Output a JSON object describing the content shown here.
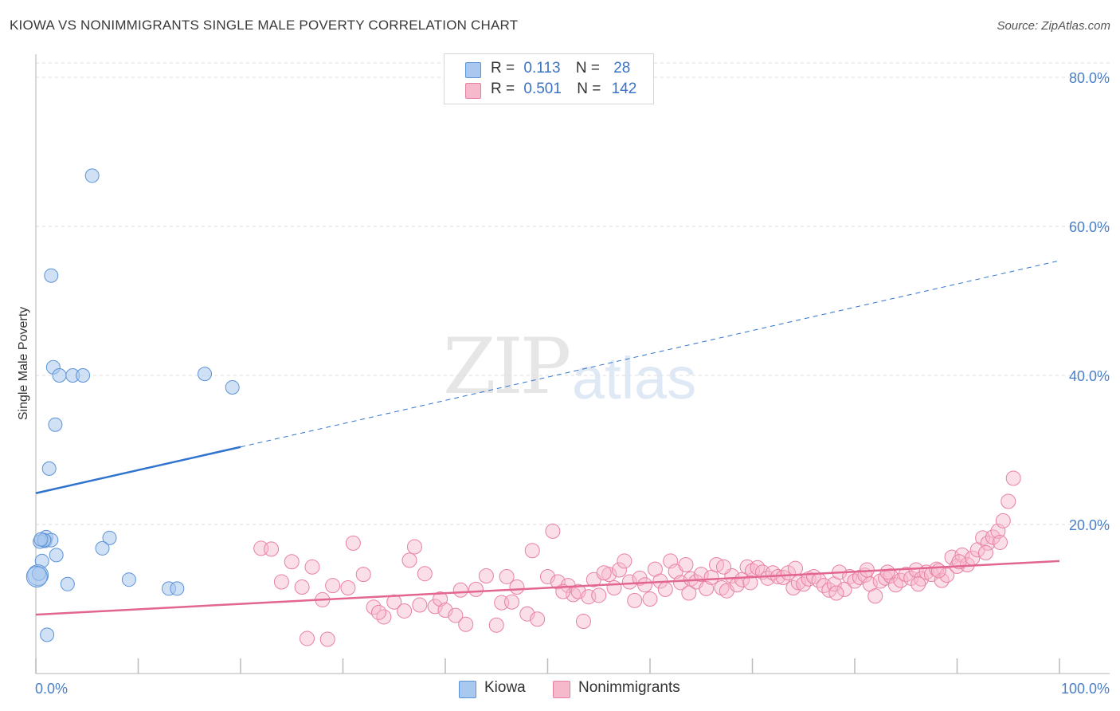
{
  "title": "KIOWA VS NONIMMIGRANTS SINGLE MALE POVERTY CORRELATION CHART",
  "source": "Source: ZipAtlas.com",
  "watermark": {
    "zip": "ZIP",
    "atlas": "atlas"
  },
  "legend": {
    "rows": [
      {
        "r_label": "R =",
        "r_value": "0.113",
        "n_label": "N =",
        "n_value": "28",
        "color": "#a9c8ef"
      },
      {
        "r_label": "R =",
        "r_value": "0.501",
        "n_label": "N =",
        "n_value": "142",
        "color": "#f6b8cb"
      }
    ]
  },
  "bottom_legend": {
    "kiowa": "Kiowa",
    "nonimmigrants": "Nonimmigrants"
  },
  "colors": {
    "kiowa_fill": "#a9c8ef",
    "kiowa_stroke": "#5b93d6",
    "kiowa_line": "#2f73cf",
    "non_fill": "#f6b8cb",
    "non_stroke": "#e880a1",
    "non_line": "#e2668f",
    "tick_text": "#4a7fc8",
    "grid": "#dddddd"
  },
  "chart_data": {
    "type": "scatter",
    "ylabel": "Single Male Poverty",
    "xlim": [
      0,
      100
    ],
    "ylim": [
      0,
      80
    ],
    "x_ticks": [
      "0.0%",
      "100.0%"
    ],
    "y_ticks": [
      {
        "value": 20,
        "label": "20.0%"
      },
      {
        "value": 40,
        "label": "40.0%"
      },
      {
        "value": 60,
        "label": "60.0%"
      },
      {
        "value": 80,
        "label": "80.0%"
      }
    ],
    "grid": true,
    "series": [
      {
        "name": "Kiowa",
        "points": [
          [
            5.5,
            66.8
          ],
          [
            1.5,
            53.4
          ],
          [
            1.7,
            41.1
          ],
          [
            2.3,
            40.0
          ],
          [
            3.6,
            40.0
          ],
          [
            4.6,
            40.0
          ],
          [
            16.5,
            40.2
          ],
          [
            19.2,
            38.4
          ],
          [
            1.9,
            33.4
          ],
          [
            1.3,
            27.5
          ],
          [
            1.0,
            18.3
          ],
          [
            0.9,
            17.8
          ],
          [
            1.5,
            17.9
          ],
          [
            0.4,
            17.7
          ],
          [
            7.2,
            18.2
          ],
          [
            6.5,
            16.8
          ],
          [
            2.0,
            15.9
          ],
          [
            0.6,
            15.1
          ],
          [
            0.2,
            13.2
          ],
          [
            0.3,
            13.4
          ],
          [
            9.1,
            12.6
          ],
          [
            3.1,
            12.0
          ],
          [
            13.0,
            11.4
          ],
          [
            13.8,
            11.4
          ],
          [
            1.1,
            5.2
          ],
          [
            0.1,
            13.0
          ],
          [
            0.8,
            17.9
          ],
          [
            0.5,
            18.0
          ]
        ],
        "trend": {
          "x0": 0,
          "y0": 24.2,
          "x1": 20,
          "y1": 30.4,
          "x_end": 100,
          "y_end": 55.4
        }
      },
      {
        "name": "Nonimmigrants",
        "points": [
          [
            22,
            16.8
          ],
          [
            25,
            15.0
          ],
          [
            26,
            11.6
          ],
          [
            27,
            14.3
          ],
          [
            28,
            9.9
          ],
          [
            29,
            11.8
          ],
          [
            31,
            17.5
          ],
          [
            32,
            13.3
          ],
          [
            33,
            8.9
          ],
          [
            34,
            7.6
          ],
          [
            35,
            9.6
          ],
          [
            36,
            8.4
          ],
          [
            36.5,
            15.2
          ],
          [
            37,
            17.0
          ],
          [
            38,
            13.4
          ],
          [
            39,
            9.0
          ],
          [
            39.5,
            10.0
          ],
          [
            40,
            8.5
          ],
          [
            41,
            7.8
          ],
          [
            42,
            6.6
          ],
          [
            43,
            11.3
          ],
          [
            44,
            13.1
          ],
          [
            45,
            6.5
          ],
          [
            45.5,
            9.5
          ],
          [
            46,
            13.0
          ],
          [
            47,
            11.6
          ],
          [
            48,
            8.0
          ],
          [
            48.5,
            16.5
          ],
          [
            49,
            7.3
          ],
          [
            50,
            13.0
          ],
          [
            50.5,
            19.1
          ],
          [
            51,
            12.3
          ],
          [
            52,
            11.8
          ],
          [
            52.5,
            10.6
          ],
          [
            53,
            11.0
          ],
          [
            54,
            10.3
          ],
          [
            54.5,
            12.6
          ],
          [
            55,
            10.5
          ],
          [
            56,
            13.3
          ],
          [
            56.5,
            11.5
          ],
          [
            57,
            13.9
          ],
          [
            57.5,
            15.1
          ],
          [
            58,
            12.3
          ],
          [
            59,
            12.8
          ],
          [
            59.5,
            11.9
          ],
          [
            60,
            10.0
          ],
          [
            60.5,
            14.0
          ],
          [
            61,
            12.4
          ],
          [
            61.5,
            11.3
          ],
          [
            62,
            15.1
          ],
          [
            62.5,
            13.7
          ],
          [
            63,
            12.2
          ],
          [
            63.5,
            14.6
          ],
          [
            64,
            12.7
          ],
          [
            64.5,
            12.3
          ],
          [
            65,
            13.3
          ],
          [
            65.5,
            11.4
          ],
          [
            66,
            12.9
          ],
          [
            66.5,
            14.6
          ],
          [
            67,
            11.5
          ],
          [
            67.5,
            11.1
          ],
          [
            68,
            13.1
          ],
          [
            68.5,
            11.9
          ],
          [
            69,
            12.6
          ],
          [
            69.5,
            14.3
          ],
          [
            70,
            13.8
          ],
          [
            70.5,
            14.2
          ],
          [
            71,
            13.6
          ],
          [
            71.5,
            12.8
          ],
          [
            72,
            13.5
          ],
          [
            72.5,
            13.0
          ],
          [
            73,
            12.9
          ],
          [
            73.5,
            13.5
          ],
          [
            74,
            11.5
          ],
          [
            74.5,
            12.2
          ],
          [
            75,
            12.0
          ],
          [
            75.5,
            12.7
          ],
          [
            76,
            13.0
          ],
          [
            76.5,
            12.5
          ],
          [
            77,
            11.8
          ],
          [
            77.5,
            11.2
          ],
          [
            78,
            12.0
          ],
          [
            78.5,
            13.6
          ],
          [
            79,
            11.3
          ],
          [
            79.5,
            13.0
          ],
          [
            80,
            12.4
          ],
          [
            80.5,
            12.9
          ],
          [
            81,
            13.2
          ],
          [
            81.5,
            12.0
          ],
          [
            82,
            10.4
          ],
          [
            82.5,
            12.4
          ],
          [
            83,
            12.8
          ],
          [
            83.5,
            13.1
          ],
          [
            84,
            11.9
          ],
          [
            84.5,
            12.5
          ],
          [
            85,
            13.3
          ],
          [
            85.5,
            12.8
          ],
          [
            86,
            13.9
          ],
          [
            86.5,
            12.7
          ],
          [
            87,
            13.6
          ],
          [
            87.5,
            13.3
          ],
          [
            88,
            14.0
          ],
          [
            88.5,
            12.5
          ],
          [
            89,
            13.2
          ],
          [
            89.5,
            15.6
          ],
          [
            90,
            14.4
          ],
          [
            90.5,
            15.9
          ],
          [
            91,
            14.6
          ],
          [
            91.5,
            15.5
          ],
          [
            92,
            16.6
          ],
          [
            92.5,
            18.2
          ],
          [
            93,
            17.5
          ],
          [
            93.5,
            18.3
          ],
          [
            94,
            19.1
          ],
          [
            94.5,
            20.5
          ],
          [
            95,
            23.1
          ],
          [
            95.5,
            26.2
          ],
          [
            23,
            16.7
          ],
          [
            24,
            12.3
          ],
          [
            26.5,
            4.7
          ],
          [
            28.5,
            4.6
          ],
          [
            30.5,
            11.5
          ],
          [
            33.5,
            8.2
          ],
          [
            37.5,
            9.2
          ],
          [
            41.5,
            11.2
          ],
          [
            46.5,
            9.6
          ],
          [
            51.5,
            11.0
          ],
          [
            53.5,
            7.0
          ],
          [
            55.5,
            13.5
          ],
          [
            58.5,
            9.8
          ],
          [
            63.8,
            10.8
          ],
          [
            67.2,
            14.3
          ],
          [
            69.8,
            12.2
          ],
          [
            74.2,
            14.1
          ],
          [
            78.2,
            10.8
          ],
          [
            81.2,
            13.9
          ],
          [
            83.2,
            13.6
          ],
          [
            86.2,
            12.0
          ],
          [
            88.2,
            13.8
          ],
          [
            90.2,
            15.0
          ],
          [
            92.8,
            16.2
          ],
          [
            94.2,
            17.6
          ]
        ],
        "trend": {
          "x0": 0,
          "y0": 7.9,
          "x1": 100,
          "y1": 15.1
        }
      }
    ]
  }
}
